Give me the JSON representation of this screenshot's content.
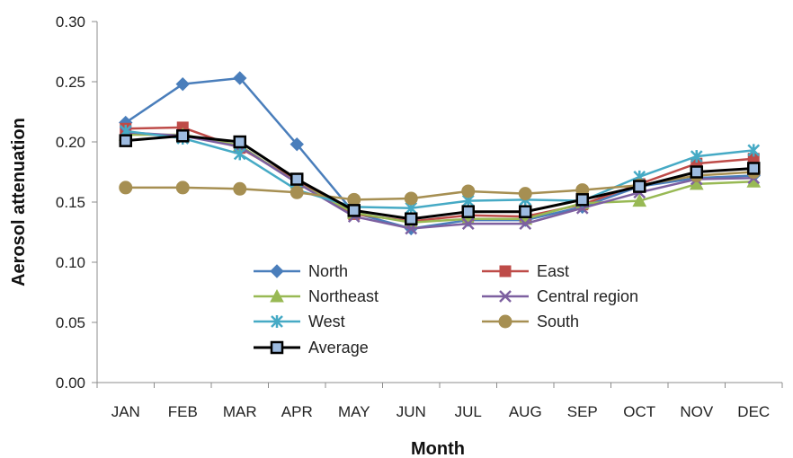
{
  "chart_data": {
    "type": "line",
    "title": "",
    "xlabel": "Month",
    "ylabel": "Aerosol attenuation",
    "categories": [
      "JAN",
      "FEB",
      "MAR",
      "APR",
      "MAY",
      "JUN",
      "JUL",
      "AUG",
      "SEP",
      "OCT",
      "NOV",
      "DEC"
    ],
    "ylim": [
      0.0,
      0.3
    ],
    "yticks": [
      "0.00",
      "0.05",
      "0.10",
      "0.15",
      "0.20",
      "0.25",
      "0.30"
    ],
    "grid": false,
    "legend_position": "center",
    "series": [
      {
        "name": "North",
        "color": "#4A7EBB",
        "marker": "diamond",
        "values": [
          0.216,
          0.248,
          0.253,
          0.198,
          0.141,
          0.128,
          0.135,
          0.135,
          0.146,
          0.163,
          0.17,
          0.172
        ]
      },
      {
        "name": "East",
        "color": "#BE4B48",
        "marker": "square",
        "values": [
          0.211,
          0.212,
          0.195,
          0.168,
          0.14,
          0.134,
          0.139,
          0.138,
          0.148,
          0.165,
          0.182,
          0.186
        ]
      },
      {
        "name": "Northeast",
        "color": "#98B954",
        "marker": "triangle",
        "values": [
          0.206,
          0.206,
          0.197,
          0.166,
          0.141,
          0.133,
          0.136,
          0.136,
          0.149,
          0.151,
          0.165,
          0.167
        ]
      },
      {
        "name": "Central region",
        "color": "#7D60A0",
        "marker": "x",
        "values": [
          0.208,
          0.205,
          0.196,
          0.166,
          0.138,
          0.128,
          0.132,
          0.132,
          0.145,
          0.158,
          0.169,
          0.17
        ]
      },
      {
        "name": "West",
        "color": "#46AAC5",
        "marker": "star",
        "values": [
          0.209,
          0.203,
          0.19,
          0.16,
          0.146,
          0.145,
          0.151,
          0.152,
          0.151,
          0.171,
          0.188,
          0.193
        ]
      },
      {
        "name": "South",
        "color": "#A68F52",
        "marker": "circle",
        "values": [
          0.162,
          0.162,
          0.161,
          0.158,
          0.152,
          0.153,
          0.159,
          0.157,
          0.16,
          0.164,
          0.172,
          0.175
        ]
      },
      {
        "name": "Average",
        "color": "#000000",
        "marker": "square-blue",
        "values": [
          0.201,
          0.205,
          0.2,
          0.169,
          0.143,
          0.136,
          0.142,
          0.142,
          0.152,
          0.163,
          0.175,
          0.178
        ]
      }
    ]
  }
}
